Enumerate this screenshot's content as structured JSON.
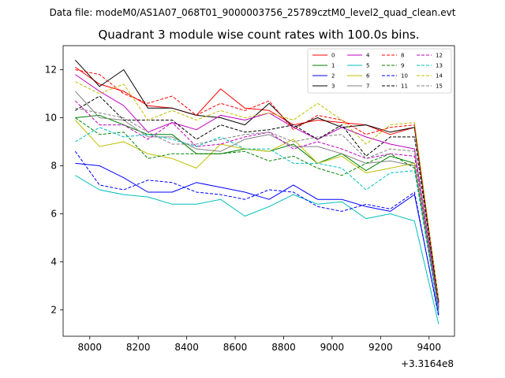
{
  "chart_data": {
    "type": "line",
    "suptitle": "Data file: modeM0/AS1A07_068T01_9000003756_25789cztM0_level2_quad_clean.evt",
    "title": "Quadrant 3 module wise count rates with 100.0s bins.",
    "xlabel": "",
    "ylabel": "",
    "x_offset_label": "+3.3164e8",
    "x_offset": 331640000,
    "xlim": [
      7890,
      9505
    ],
    "ylim": [
      0.9,
      13.0
    ],
    "xticks": [
      8000,
      8200,
      8400,
      8600,
      8800,
      9000,
      9200,
      9400
    ],
    "yticks": [
      2,
      4,
      6,
      8,
      10,
      12
    ],
    "grid": false,
    "legend_position": "top-right",
    "x": [
      7940,
      8040,
      8140,
      8240,
      8340,
      8440,
      8540,
      8640,
      8740,
      8840,
      8940,
      9040,
      9140,
      9240,
      9340,
      9440
    ],
    "series": [
      {
        "name": "0",
        "color": "#ff0000",
        "dash": false,
        "values": [
          12.1,
          11.4,
          11.1,
          10.5,
          10.4,
          10.1,
          11.2,
          10.4,
          10.3,
          9.7,
          9.9,
          9.8,
          9.7,
          9.3,
          9.6,
          2.3
        ]
      },
      {
        "name": "1",
        "color": "#008000",
        "dash": false,
        "values": [
          10.0,
          10.1,
          9.7,
          9.3,
          9.3,
          8.5,
          8.5,
          8.7,
          8.6,
          8.9,
          8.1,
          8.5,
          7.8,
          8.4,
          8.1,
          2.1
        ]
      },
      {
        "name": "2",
        "color": "#0000ff",
        "dash": false,
        "values": [
          8.1,
          8.0,
          7.5,
          6.9,
          6.9,
          7.3,
          7.1,
          6.9,
          6.6,
          7.2,
          6.6,
          6.6,
          6.3,
          6.1,
          6.8,
          1.8
        ]
      },
      {
        "name": "3",
        "color": "#000000",
        "dash": false,
        "values": [
          12.4,
          11.3,
          12.0,
          10.4,
          10.4,
          10.1,
          10.0,
          9.7,
          10.6,
          9.6,
          10.0,
          9.6,
          9.7,
          9.4,
          9.6,
          2.3
        ]
      },
      {
        "name": "4",
        "color": "#bf00bf",
        "dash": false,
        "values": [
          11.8,
          11.1,
          10.5,
          9.4,
          9.8,
          9.5,
          10.1,
          9.9,
          10.2,
          9.6,
          9.1,
          9.6,
          9.2,
          8.9,
          8.7,
          2.2
        ]
      },
      {
        "name": "5",
        "color": "#00bfbf",
        "dash": false,
        "values": [
          7.6,
          7.0,
          6.8,
          6.7,
          6.4,
          6.4,
          6.6,
          5.9,
          6.3,
          6.8,
          6.4,
          6.5,
          5.8,
          6.0,
          5.7,
          1.4
        ]
      },
      {
        "name": "6",
        "color": "#bfbf00",
        "dash": false,
        "values": [
          9.9,
          8.8,
          9.0,
          8.5,
          8.3,
          7.9,
          8.9,
          8.7,
          8.6,
          9.1,
          8.1,
          8.4,
          7.7,
          7.9,
          8.1,
          2.0
        ]
      },
      {
        "name": "7",
        "color": "#808080",
        "dash": false,
        "values": [
          11.1,
          10.0,
          9.9,
          9.2,
          9.2,
          8.7,
          8.6,
          9.1,
          9.3,
          8.8,
          8.8,
          8.5,
          8.1,
          8.2,
          8.0,
          2.0
        ]
      },
      {
        "name": "8",
        "color": "#ff0000",
        "dash": true,
        "values": [
          12.0,
          11.8,
          11.0,
          10.6,
          10.9,
          10.1,
          10.6,
          10.3,
          10.7,
          9.5,
          10.1,
          9.9,
          9.3,
          9.6,
          9.7,
          2.4
        ]
      },
      {
        "name": "9",
        "color": "#008000",
        "dash": true,
        "values": [
          10.0,
          9.3,
          9.4,
          8.3,
          8.5,
          8.5,
          8.5,
          8.6,
          8.2,
          8.4,
          7.9,
          7.6,
          8.1,
          8.5,
          7.9,
          2.0
        ]
      },
      {
        "name": "10",
        "color": "#0000ff",
        "dash": true,
        "values": [
          8.6,
          7.2,
          7.0,
          7.4,
          7.3,
          6.9,
          6.8,
          6.6,
          7.0,
          6.9,
          6.3,
          6.1,
          6.4,
          6.2,
          6.9,
          1.7
        ]
      },
      {
        "name": "11",
        "color": "#000000",
        "dash": true,
        "values": [
          10.3,
          10.9,
          9.9,
          9.9,
          9.9,
          9.1,
          9.7,
          9.4,
          9.5,
          9.7,
          9.1,
          9.7,
          8.4,
          9.2,
          9.2,
          2.3
        ]
      },
      {
        "name": "12",
        "color": "#bf00bf",
        "dash": true,
        "values": [
          10.7,
          9.7,
          9.7,
          9.1,
          9.8,
          8.8,
          8.9,
          9.2,
          9.4,
          8.7,
          9.0,
          8.7,
          8.3,
          8.5,
          8.4,
          2.1
        ]
      },
      {
        "name": "13",
        "color": "#00bfbf",
        "dash": true,
        "values": [
          9.0,
          9.6,
          9.2,
          9.3,
          9.1,
          8.8,
          9.2,
          8.7,
          8.7,
          8.1,
          8.1,
          7.9,
          7.0,
          7.7,
          7.8,
          1.9
        ]
      },
      {
        "name": "14",
        "color": "#bfbf00",
        "dash": true,
        "values": [
          11.5,
          11.0,
          11.4,
          9.9,
          10.3,
          9.9,
          10.3,
          10.0,
          10.2,
          9.9,
          10.6,
          9.9,
          8.9,
          9.7,
          9.8,
          2.4
        ]
      },
      {
        "name": "15",
        "color": "#808080",
        "dash": true,
        "values": [
          10.4,
          10.2,
          10.0,
          9.4,
          8.9,
          8.9,
          9.1,
          9.3,
          9.4,
          9.0,
          9.2,
          9.3,
          8.3,
          8.7,
          8.6,
          2.1
        ]
      }
    ]
  }
}
